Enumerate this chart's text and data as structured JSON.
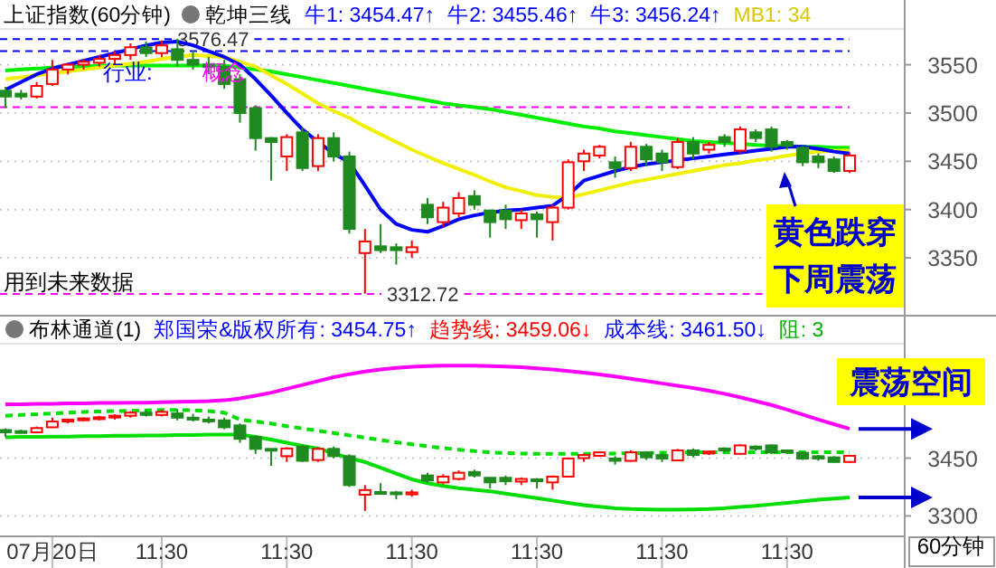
{
  "chart_data": [
    {
      "type": "candlestick",
      "title": "上证指数(60分钟)",
      "subtitle": "乾坤三线",
      "categories": [
        null,
        null,
        null,
        null,
        null,
        null,
        null,
        null,
        null,
        null,
        null,
        null,
        null,
        null,
        null,
        null,
        null,
        null,
        null,
        null,
        null,
        null,
        null,
        null,
        null,
        null,
        null,
        null,
        null,
        null,
        null,
        null,
        null,
        null,
        null,
        null,
        null,
        null,
        null,
        null,
        null,
        null,
        null,
        null,
        null,
        null,
        null,
        null,
        null,
        null,
        null,
        null,
        null,
        null,
        null
      ],
      "ohlc": [
        [
          3523,
          3527,
          3505,
          3517
        ],
        [
          3520,
          3524,
          3514,
          3517
        ],
        [
          3517,
          3532,
          3515,
          3528
        ],
        [
          3530,
          3555,
          3528,
          3545
        ],
        [
          3545,
          3552,
          3540,
          3550
        ],
        [
          3550,
          3556,
          3545,
          3553
        ],
        [
          3552,
          3560,
          3548,
          3556
        ],
        [
          3556,
          3564,
          3550,
          3560
        ],
        [
          3560,
          3572,
          3555,
          3568
        ],
        [
          3568,
          3574,
          3558,
          3562
        ],
        [
          3562,
          3575,
          3558,
          3570
        ],
        [
          3566,
          3577,
          3548,
          3555
        ],
        [
          3555,
          3565,
          3545,
          3550
        ],
        [
          3550,
          3558,
          3540,
          3548
        ],
        [
          3548,
          3555,
          3525,
          3530
        ],
        [
          3535,
          3540,
          3490,
          3500
        ],
        [
          3505,
          3508,
          3461,
          3474
        ],
        [
          3474,
          3475,
          3430,
          3470
        ],
        [
          3455,
          3478,
          3440,
          3475
        ],
        [
          3480,
          3485,
          3440,
          3443
        ],
        [
          3445,
          3478,
          3440,
          3474
        ],
        [
          3474,
          3480,
          3450,
          3455
        ],
        [
          3455,
          3460,
          3375,
          3380
        ],
        [
          3355,
          3380,
          3313,
          3367
        ],
        [
          3362,
          3385,
          3355,
          3358
        ],
        [
          3361,
          3365,
          3343,
          3358
        ],
        [
          3356,
          3368,
          3350,
          3361
        ],
        [
          3405,
          3412,
          3385,
          3392
        ],
        [
          3387,
          3408,
          3382,
          3402
        ],
        [
          3396,
          3418,
          3392,
          3412
        ],
        [
          3414,
          3420,
          3400,
          3405
        ],
        [
          3399,
          3400,
          3371,
          3387
        ],
        [
          3399,
          3405,
          3380,
          3390
        ],
        [
          3389,
          3400,
          3380,
          3396
        ],
        [
          3395,
          3398,
          3371,
          3390
        ],
        [
          3387,
          3405,
          3368,
          3402
        ],
        [
          3402,
          3452,
          3400,
          3449
        ],
        [
          3450,
          3462,
          3440,
          3458
        ],
        [
          3456,
          3467,
          3453,
          3465
        ],
        [
          3449,
          3455,
          3433,
          3443
        ],
        [
          3443,
          3470,
          3440,
          3465
        ],
        [
          3465,
          3468,
          3445,
          3452
        ],
        [
          3458,
          3462,
          3440,
          3449
        ],
        [
          3444,
          3474,
          3442,
          3470
        ],
        [
          3470,
          3475,
          3452,
          3458
        ],
        [
          3462,
          3470,
          3458,
          3467
        ],
        [
          3475,
          3478,
          3465,
          3470
        ],
        [
          3461,
          3486,
          3458,
          3483
        ],
        [
          3480,
          3483,
          3470,
          3474
        ],
        [
          3483,
          3486,
          3460,
          3465
        ],
        [
          3470,
          3472,
          3462,
          3466
        ],
        [
          3464,
          3466,
          3445,
          3449
        ],
        [
          3455,
          3458,
          3443,
          3449
        ],
        [
          3452,
          3455,
          3438,
          3440
        ],
        [
          3440,
          3459,
          3438,
          3456
        ]
      ],
      "series": [
        {
          "type": "line",
          "color": "#00ee00",
          "values": [
            3544,
            3545,
            3546,
            3547,
            3548,
            3548,
            3549,
            3549,
            3549,
            3549,
            3549,
            3549,
            3549,
            3549,
            3549,
            3547,
            3545,
            3543,
            3540,
            3537,
            3534,
            3531,
            3528,
            3525,
            3522,
            3519,
            3516,
            3513,
            3510,
            3508,
            3506,
            3504,
            3501,
            3498,
            3495,
            3492,
            3489,
            3486,
            3484,
            3481,
            3479,
            3477,
            3475,
            3473,
            3471,
            3470,
            3469,
            3468,
            3467,
            3466,
            3466,
            3465,
            3465,
            3464,
            3464
          ]
        },
        {
          "type": "line",
          "color": "#f0f000",
          "values": [
            3535,
            3537,
            3539,
            3541,
            3543,
            3545,
            3547,
            3549,
            3551,
            3553,
            3556,
            3558,
            3560,
            3559,
            3558,
            3553,
            3548,
            3539,
            3530,
            3520,
            3510,
            3502,
            3495,
            3486,
            3478,
            3470,
            3462,
            3455,
            3448,
            3442,
            3436,
            3429,
            3423,
            3419,
            3415,
            3413,
            3412,
            3416,
            3420,
            3424,
            3428,
            3431,
            3434,
            3437,
            3440,
            3443,
            3446,
            3448,
            3451,
            3453,
            3456,
            3458,
            3460,
            3461,
            3461
          ]
        },
        {
          "type": "line",
          "color": "#0000ff",
          "values": [
            3524,
            3532,
            3540,
            3546,
            3550,
            3554,
            3558,
            3562,
            3566,
            3570,
            3573,
            3574,
            3570,
            3564,
            3558,
            3550,
            3535,
            3518,
            3500,
            3483,
            3470,
            3458,
            3449,
            3425,
            3400,
            3385,
            3379,
            3377,
            3383,
            3390,
            3394,
            3397,
            3399,
            3400,
            3402,
            3404,
            3415,
            3430,
            3435,
            3440,
            3444,
            3447,
            3449,
            3451,
            3453,
            3455,
            3457,
            3459,
            3461,
            3463,
            3465,
            3465,
            3463,
            3460,
            3458
          ]
        }
      ],
      "ylim": [
        3293,
        3587
      ],
      "yticks": [
        3350,
        3400,
        3450,
        3500,
        3550
      ],
      "grid": "y",
      "tick_labels": "y",
      "ref_lines": [
        {
          "axis": "y",
          "value": 3576.47,
          "label": "3576.47",
          "color": "#0000ff",
          "line_style": "dashed"
        },
        {
          "axis": "y",
          "value": 3564,
          "color": "#0000ff",
          "line_style": "dashed"
        },
        {
          "axis": "y",
          "value": 3506,
          "color": "#ff00ff",
          "line_style": "dashed"
        },
        {
          "axis": "y",
          "value": 3312.72,
          "label": "3312.72",
          "color": "#ff00ff",
          "line_style": "dashed"
        }
      ],
      "annotations": [
        "牛1: 3454.47↑",
        "牛2: 3455.46↑",
        "牛3: 3456.24↑",
        "MB1: 34",
        "行业:",
        "概念",
        "用到未来数据",
        "黄色跌穿",
        "下周震荡"
      ]
    },
    {
      "type": "candlestick",
      "title": "布林通道(1)",
      "categories": [
        null,
        null,
        null,
        "07月20日",
        null,
        null,
        null,
        null,
        null,
        null,
        "11:30",
        null,
        null,
        null,
        null,
        null,
        null,
        null,
        "11:30",
        null,
        null,
        null,
        null,
        null,
        null,
        null,
        "11:30",
        null,
        null,
        null,
        null,
        null,
        null,
        null,
        "11:30",
        null,
        null,
        null,
        null,
        null,
        null,
        null,
        "11:30",
        null,
        null,
        null,
        null,
        null,
        null,
        null,
        "11:30",
        null,
        null,
        null,
        null
      ],
      "ohlc": [
        [
          3523,
          3527,
          3505,
          3517
        ],
        [
          3520,
          3524,
          3514,
          3517
        ],
        [
          3517,
          3532,
          3515,
          3528
        ],
        [
          3530,
          3555,
          3528,
          3545
        ],
        [
          3545,
          3552,
          3540,
          3550
        ],
        [
          3550,
          3556,
          3545,
          3553
        ],
        [
          3552,
          3560,
          3548,
          3556
        ],
        [
          3556,
          3564,
          3550,
          3560
        ],
        [
          3560,
          3572,
          3555,
          3568
        ],
        [
          3568,
          3574,
          3558,
          3562
        ],
        [
          3562,
          3575,
          3558,
          3570
        ],
        [
          3566,
          3577,
          3548,
          3555
        ],
        [
          3555,
          3565,
          3545,
          3550
        ],
        [
          3550,
          3558,
          3540,
          3548
        ],
        [
          3548,
          3555,
          3525,
          3530
        ],
        [
          3535,
          3540,
          3490,
          3500
        ],
        [
          3505,
          3508,
          3461,
          3474
        ],
        [
          3474,
          3475,
          3430,
          3470
        ],
        [
          3455,
          3478,
          3440,
          3475
        ],
        [
          3480,
          3485,
          3440,
          3443
        ],
        [
          3445,
          3478,
          3440,
          3474
        ],
        [
          3474,
          3480,
          3450,
          3455
        ],
        [
          3455,
          3460,
          3375,
          3380
        ],
        [
          3355,
          3380,
          3313,
          3367
        ],
        [
          3362,
          3385,
          3355,
          3358
        ],
        [
          3361,
          3365,
          3343,
          3358
        ],
        [
          3356,
          3368,
          3350,
          3361
        ],
        [
          3405,
          3412,
          3385,
          3392
        ],
        [
          3387,
          3408,
          3382,
          3402
        ],
        [
          3396,
          3418,
          3392,
          3412
        ],
        [
          3414,
          3420,
          3400,
          3405
        ],
        [
          3399,
          3400,
          3371,
          3387
        ],
        [
          3399,
          3405,
          3380,
          3390
        ],
        [
          3389,
          3400,
          3380,
          3396
        ],
        [
          3395,
          3398,
          3371,
          3390
        ],
        [
          3387,
          3405,
          3368,
          3402
        ],
        [
          3402,
          3452,
          3400,
          3449
        ],
        [
          3450,
          3462,
          3440,
          3458
        ],
        [
          3456,
          3467,
          3453,
          3465
        ],
        [
          3449,
          3455,
          3433,
          3443
        ],
        [
          3443,
          3470,
          3440,
          3465
        ],
        [
          3465,
          3468,
          3445,
          3452
        ],
        [
          3458,
          3462,
          3440,
          3449
        ],
        [
          3444,
          3474,
          3442,
          3470
        ],
        [
          3470,
          3475,
          3452,
          3458
        ],
        [
          3462,
          3470,
          3458,
          3467
        ],
        [
          3475,
          3478,
          3465,
          3470
        ],
        [
          3461,
          3486,
          3458,
          3483
        ],
        [
          3480,
          3483,
          3470,
          3474
        ],
        [
          3483,
          3486,
          3460,
          3465
        ],
        [
          3470,
          3472,
          3462,
          3466
        ],
        [
          3464,
          3466,
          3445,
          3449
        ],
        [
          3455,
          3458,
          3443,
          3449
        ],
        [
          3452,
          3455,
          3438,
          3440
        ],
        [
          3440,
          3459,
          3438,
          3456
        ]
      ],
      "series": [
        {
          "type": "line",
          "color": "#ff00ff",
          "values": [
            3590,
            3590,
            3591,
            3591,
            3592,
            3592,
            3593,
            3593,
            3594,
            3594,
            3595,
            3596,
            3597,
            3598,
            3600,
            3605,
            3612,
            3620,
            3630,
            3640,
            3650,
            3660,
            3668,
            3675,
            3680,
            3684,
            3687,
            3689,
            3690,
            3690,
            3690,
            3689,
            3688,
            3686,
            3683,
            3680,
            3676,
            3672,
            3667,
            3662,
            3656,
            3650,
            3644,
            3638,
            3632,
            3625,
            3617,
            3608,
            3598,
            3588,
            3576,
            3563,
            3550,
            3538,
            3526
          ]
        },
        {
          "type": "line",
          "color": "#00dd00",
          "line_style": "dashed",
          "values": [
            3560,
            3562,
            3564,
            3566,
            3568,
            3570,
            3571,
            3572,
            3573,
            3574,
            3575,
            3575,
            3574,
            3572,
            3568,
            3550,
            3545,
            3540,
            3533,
            3527,
            3521,
            3515,
            3509,
            3503,
            3497,
            3491,
            3486,
            3481,
            3476,
            3472,
            3468,
            3465,
            3463,
            3462,
            3461,
            3461,
            3461,
            3461,
            3462,
            3462,
            3463,
            3463,
            3464,
            3464,
            3465,
            3465,
            3465,
            3465,
            3465,
            3465,
            3465,
            3465,
            3465,
            3465,
            3465
          ]
        },
        {
          "type": "line",
          "color": "#00dd00",
          "values": [
            3504,
            3505,
            3505,
            3506,
            3506,
            3507,
            3507,
            3508,
            3508,
            3509,
            3509,
            3510,
            3510,
            3511,
            3511,
            3511,
            3505,
            3498,
            3490,
            3482,
            3475,
            3462,
            3450,
            3440,
            3425,
            3410,
            3395,
            3385,
            3378,
            3372,
            3368,
            3364,
            3358,
            3352,
            3346,
            3340,
            3334,
            3328,
            3324,
            3320,
            3318,
            3317,
            3316,
            3316,
            3317,
            3318,
            3320,
            3323,
            3326,
            3330,
            3334,
            3338,
            3342,
            3345,
            3348
          ]
        }
      ],
      "ylim": [
        3254,
        3747
      ],
      "yticks": [
        3300,
        3450
      ],
      "grid": "y",
      "annotations": [
        "郑国荣&版权所有: 3454.75↑",
        "趋势线: 3459.06↓",
        "成本线: 3461.50↓",
        "阻: 3",
        "震荡空间",
        "60分钟"
      ]
    }
  ]
}
